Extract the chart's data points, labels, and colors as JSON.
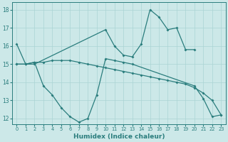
{
  "xlabel": "Humidex (Indice chaleur)",
  "line_color": "#2a7d7d",
  "bg_color": "#cce8e8",
  "grid_color": "#aad4d4",
  "ylim": [
    11.7,
    18.4
  ],
  "xlim": [
    -0.5,
    23.5
  ],
  "yticks": [
    12,
    13,
    14,
    15,
    16,
    17,
    18
  ],
  "xticks": [
    0,
    1,
    2,
    3,
    4,
    5,
    6,
    7,
    8,
    9,
    10,
    11,
    12,
    13,
    14,
    15,
    16,
    17,
    18,
    19,
    20,
    21,
    22,
    23
  ],
  "line1_x": [
    0,
    1,
    2,
    10,
    11,
    12,
    13,
    14,
    15,
    16,
    17,
    18,
    19,
    20
  ],
  "line1_y": [
    16.1,
    15.0,
    15.0,
    16.9,
    16.0,
    15.5,
    15.4,
    16.1,
    18.0,
    17.6,
    16.9,
    17.0,
    15.8,
    15.8
  ],
  "line2_x": [
    0,
    1,
    2,
    3,
    4,
    5,
    6,
    7,
    8,
    9,
    10,
    11,
    12,
    13,
    14,
    15,
    16,
    17,
    18,
    19,
    20,
    21,
    22,
    23
  ],
  "line2_y": [
    15.0,
    15.0,
    15.1,
    15.1,
    15.2,
    15.2,
    15.2,
    15.1,
    15.0,
    14.9,
    14.8,
    14.7,
    14.6,
    14.5,
    14.4,
    14.3,
    14.2,
    14.1,
    14.0,
    13.9,
    13.7,
    13.4,
    13.0,
    12.2
  ],
  "line3_x": [
    0,
    1,
    2,
    3,
    4,
    5,
    6,
    7,
    8,
    9,
    10,
    11,
    12,
    13,
    20,
    21,
    22,
    23
  ],
  "line3_y": [
    15.0,
    15.0,
    15.1,
    13.8,
    13.3,
    12.6,
    12.1,
    11.8,
    12.0,
    13.3,
    15.3,
    15.2,
    15.1,
    15.0,
    13.8,
    13.1,
    12.1,
    12.2
  ]
}
